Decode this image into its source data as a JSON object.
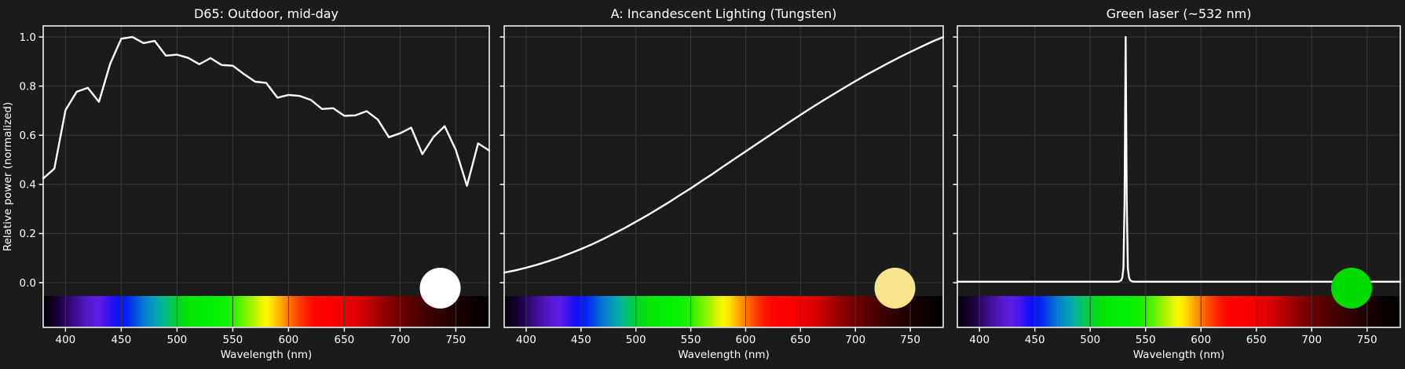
{
  "figure": {
    "background_color": "#1b1b1b",
    "grid_color": "#3a3a3a",
    "spine_color": "#ffffff",
    "line_color": "#ffffff",
    "text_color": "#ffffff"
  },
  "axis": {
    "xlabel": "Wavelength (nm)",
    "ylabel": "Relative power (normalized)",
    "xlim": [
      380,
      780
    ],
    "ylim": [
      -0.182,
      1.045
    ],
    "xticks": [
      400,
      450,
      500,
      550,
      600,
      650,
      700,
      750
    ],
    "ytick_labels": [
      "0.0",
      "0.2",
      "0.4",
      "0.6",
      "0.8",
      "1.0"
    ],
    "ytick_values": [
      0.0,
      0.2,
      0.4,
      0.6,
      0.8,
      1.0
    ]
  },
  "spectrum_bar": {
    "description": "visible-spectrum wavelength color strip under each plot, 380-780 nm",
    "stops": [
      {
        "wl": 380,
        "color": "#030005"
      },
      {
        "wl": 392,
        "color": "#140130"
      },
      {
        "wl": 400,
        "color": "#290761"
      },
      {
        "wl": 408,
        "color": "#3c0e8e"
      },
      {
        "wl": 416,
        "color": "#4c15b4"
      },
      {
        "wl": 424,
        "color": "#5a1cd8"
      },
      {
        "wl": 430,
        "color": "#5c1ee8"
      },
      {
        "wl": 436,
        "color": "#4617ee"
      },
      {
        "wl": 442,
        "color": "#2410f2"
      },
      {
        "wl": 448,
        "color": "#0c12f6"
      },
      {
        "wl": 455,
        "color": "#0522f4"
      },
      {
        "wl": 462,
        "color": "#044be4"
      },
      {
        "wl": 470,
        "color": "#0677d2"
      },
      {
        "wl": 478,
        "color": "#0698bc"
      },
      {
        "wl": 486,
        "color": "#04b29c"
      },
      {
        "wl": 492,
        "color": "#02c06e"
      },
      {
        "wl": 498,
        "color": "#03cc42"
      },
      {
        "wl": 504,
        "color": "#04d81c"
      },
      {
        "wl": 510,
        "color": "#03e206"
      },
      {
        "wl": 520,
        "color": "#02ec02"
      },
      {
        "wl": 532,
        "color": "#01f001"
      },
      {
        "wl": 545,
        "color": "#14f000"
      },
      {
        "wl": 552,
        "color": "#38f000"
      },
      {
        "wl": 560,
        "color": "#70f200"
      },
      {
        "wl": 568,
        "color": "#aaf400"
      },
      {
        "wl": 575,
        "color": "#e2f600"
      },
      {
        "wl": 580,
        "color": "#fcf800"
      },
      {
        "wl": 586,
        "color": "#ffdc00"
      },
      {
        "wl": 592,
        "color": "#ffb000"
      },
      {
        "wl": 598,
        "color": "#ff8800"
      },
      {
        "wl": 604,
        "color": "#ff5e00"
      },
      {
        "wl": 611,
        "color": "#ff3600"
      },
      {
        "wl": 618,
        "color": "#ff1400"
      },
      {
        "wl": 625,
        "color": "#fe0400"
      },
      {
        "wl": 640,
        "color": "#fb0000"
      },
      {
        "wl": 652,
        "color": "#ee0000"
      },
      {
        "wl": 664,
        "color": "#d40000"
      },
      {
        "wl": 676,
        "color": "#b20000"
      },
      {
        "wl": 688,
        "color": "#8e0000"
      },
      {
        "wl": 700,
        "color": "#700000"
      },
      {
        "wl": 712,
        "color": "#560000"
      },
      {
        "wl": 725,
        "color": "#3e0000"
      },
      {
        "wl": 740,
        "color": "#280000"
      },
      {
        "wl": 755,
        "color": "#160000"
      },
      {
        "wl": 768,
        "color": "#0a0000"
      },
      {
        "wl": 780,
        "color": "#020000"
      }
    ]
  },
  "chart_data": [
    {
      "type": "line",
      "title": "D65: Outdoor, mid-day",
      "xlabel": "Wavelength (nm)",
      "ylabel": "Relative power (normalized)",
      "xlim": [
        380,
        780
      ],
      "ylim": [
        -0.182,
        1.045
      ],
      "grid": true,
      "show_ytick_labels": true,
      "swatch_color": "#ffffff",
      "x": [
        380,
        390,
        400,
        410,
        420,
        430,
        440,
        450,
        460,
        470,
        480,
        490,
        500,
        510,
        520,
        530,
        540,
        550,
        560,
        570,
        580,
        590,
        600,
        610,
        620,
        630,
        640,
        650,
        660,
        670,
        680,
        690,
        700,
        710,
        720,
        730,
        740,
        750,
        760,
        770,
        780
      ],
      "y": [
        0.424,
        0.464,
        0.702,
        0.777,
        0.793,
        0.736,
        0.89,
        0.993,
        1.0,
        0.975,
        0.984,
        0.924,
        0.928,
        0.915,
        0.889,
        0.914,
        0.886,
        0.883,
        0.849,
        0.818,
        0.813,
        0.753,
        0.764,
        0.76,
        0.744,
        0.707,
        0.71,
        0.679,
        0.681,
        0.698,
        0.664,
        0.592,
        0.608,
        0.631,
        0.523,
        0.593,
        0.637,
        0.54,
        0.394,
        0.567,
        0.538
      ]
    },
    {
      "type": "line",
      "title": "A: Incandescent Lighting (Tungsten)",
      "xlabel": "Wavelength (nm)",
      "ylabel": "",
      "xlim": [
        380,
        780
      ],
      "ylim": [
        -0.182,
        1.045
      ],
      "grid": true,
      "show_ytick_labels": false,
      "swatch_color": "#f7e58e",
      "x": [
        380,
        390,
        400,
        410,
        420,
        430,
        440,
        450,
        460,
        470,
        480,
        490,
        500,
        510,
        520,
        530,
        540,
        550,
        560,
        570,
        580,
        590,
        600,
        610,
        620,
        630,
        640,
        650,
        660,
        670,
        680,
        690,
        700,
        710,
        720,
        730,
        740,
        750,
        760,
        770,
        780
      ],
      "y": [
        0.041,
        0.05,
        0.061,
        0.073,
        0.087,
        0.102,
        0.119,
        0.137,
        0.156,
        0.177,
        0.2,
        0.223,
        0.248,
        0.273,
        0.3,
        0.327,
        0.356,
        0.384,
        0.414,
        0.443,
        0.474,
        0.504,
        0.534,
        0.564,
        0.594,
        0.624,
        0.654,
        0.683,
        0.712,
        0.74,
        0.767,
        0.794,
        0.82,
        0.846,
        0.87,
        0.894,
        0.917,
        0.939,
        0.96,
        0.981,
        1.0
      ]
    },
    {
      "type": "line",
      "title": "Green laser (~532 nm)",
      "xlabel": "Wavelength (nm)",
      "ylabel": "",
      "xlim": [
        380,
        780
      ],
      "ylim": [
        -0.182,
        1.045
      ],
      "grid": true,
      "show_ytick_labels": false,
      "swatch_color": "#00dc00",
      "x": [
        380,
        520,
        524,
        526,
        528,
        529,
        530,
        531,
        532,
        533,
        534,
        535,
        536,
        538,
        540,
        780
      ],
      "y": [
        0.004,
        0.004,
        0.004,
        0.005,
        0.01,
        0.022,
        0.06,
        0.33,
        1.0,
        0.33,
        0.06,
        0.022,
        0.01,
        0.005,
        0.004,
        0.004
      ]
    }
  ]
}
